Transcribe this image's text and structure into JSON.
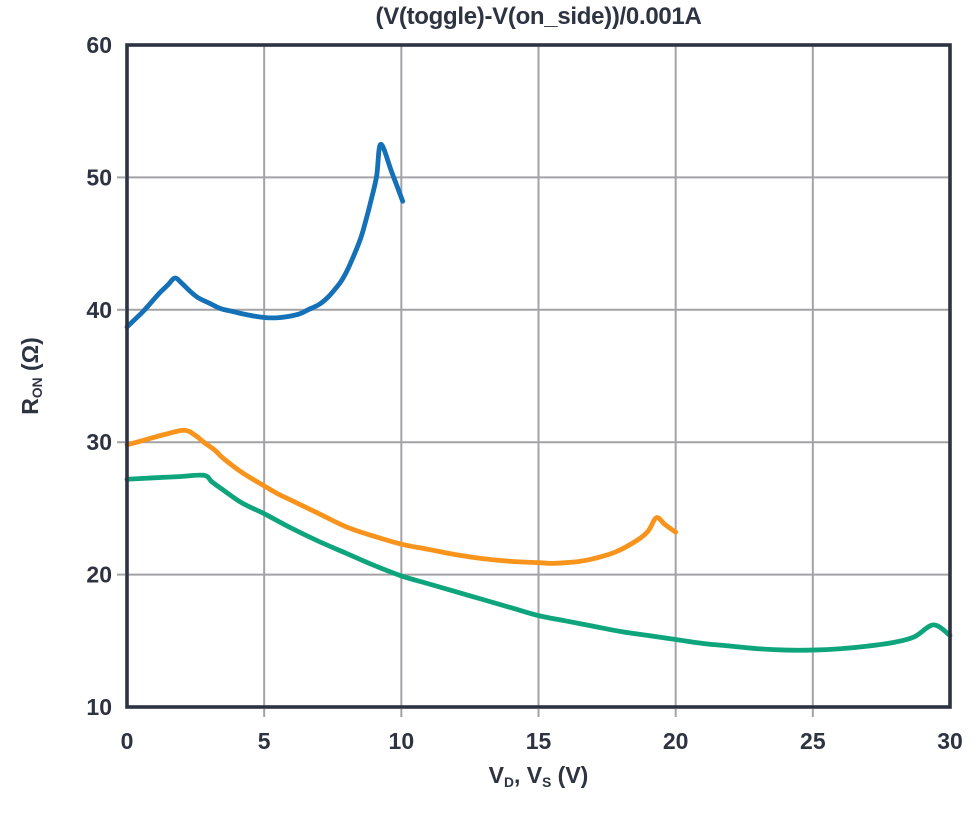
{
  "page": {
    "background": "#ffffff"
  },
  "chart_data": {
    "type": "line",
    "title": "(V(toggle)-V(on_side))/0.001A",
    "xlabel": "VD, VS (V)",
    "xlabel_parts": [
      {
        "t": "V"
      },
      {
        "t": "D",
        "sub": true
      },
      {
        "t": ", V"
      },
      {
        "t": "S",
        "sub": true
      },
      {
        "t": " (V)"
      }
    ],
    "ylabel": "RON (Ω)",
    "ylabel_parts": [
      {
        "t": "R"
      },
      {
        "t": "ON",
        "sub": true
      },
      {
        "t": " (Ω)"
      }
    ],
    "xlim": [
      0,
      30
    ],
    "ylim": [
      10,
      60
    ],
    "x_ticks": [
      0,
      5,
      10,
      15,
      20,
      25,
      30
    ],
    "y_ticks": [
      10,
      20,
      30,
      40,
      50,
      60
    ],
    "grid": true,
    "legend": "none",
    "colors": {
      "frame": "#2e3342",
      "text": "#2e3342",
      "grid": "#a3a3a7"
    },
    "series": [
      {
        "name": "blue-curve",
        "color": "#1471b8",
        "points": [
          [
            0,
            38.7
          ],
          [
            0.3,
            39.3
          ],
          [
            0.6,
            39.9
          ],
          [
            0.9,
            40.6
          ],
          [
            1.2,
            41.3
          ],
          [
            1.5,
            41.9
          ],
          [
            1.75,
            42.4
          ],
          [
            2,
            42
          ],
          [
            2.3,
            41.4
          ],
          [
            2.6,
            40.9
          ],
          [
            3,
            40.5
          ],
          [
            3.4,
            40.1
          ],
          [
            3.8,
            39.9
          ],
          [
            4.2,
            39.7
          ],
          [
            4.7,
            39.5
          ],
          [
            5.1,
            39.4
          ],
          [
            5.5,
            39.4
          ],
          [
            5.9,
            39.5
          ],
          [
            6.3,
            39.7
          ],
          [
            6.6,
            40
          ],
          [
            7,
            40.4
          ],
          [
            7.3,
            40.9
          ],
          [
            7.6,
            41.6
          ],
          [
            7.85,
            42.3
          ],
          [
            8.1,
            43.3
          ],
          [
            8.5,
            45.3
          ],
          [
            8.7,
            46.7
          ],
          [
            8.9,
            48.3
          ],
          [
            9.1,
            50.1
          ],
          [
            9.25,
            52.5
          ],
          [
            9.65,
            50.4
          ],
          [
            10.05,
            48.2
          ]
        ]
      },
      {
        "name": "orange-curve",
        "color": "#f8941c",
        "points": [
          [
            0,
            29.8
          ],
          [
            0.7,
            30.2
          ],
          [
            1.4,
            30.6
          ],
          [
            2.1,
            30.9
          ],
          [
            2.5,
            30.5
          ],
          [
            2.8,
            30
          ],
          [
            3.2,
            29.4
          ],
          [
            3.5,
            28.8
          ],
          [
            4.2,
            27.7
          ],
          [
            5,
            26.7
          ],
          [
            5.5,
            26.1
          ],
          [
            6,
            25.6
          ],
          [
            7,
            24.6
          ],
          [
            8,
            23.6
          ],
          [
            9,
            22.9
          ],
          [
            10,
            22.3
          ],
          [
            11,
            21.9
          ],
          [
            12,
            21.5
          ],
          [
            13,
            21.2
          ],
          [
            14,
            21
          ],
          [
            15,
            20.9
          ],
          [
            15.5,
            20.85
          ],
          [
            16,
            20.9
          ],
          [
            16.5,
            21
          ],
          [
            17,
            21.2
          ],
          [
            17.8,
            21.7
          ],
          [
            18.6,
            22.6
          ],
          [
            19,
            23.3
          ],
          [
            19.3,
            24.3
          ],
          [
            19.6,
            23.8
          ],
          [
            20,
            23.2
          ]
        ]
      },
      {
        "name": "green-curve",
        "color": "#0ea57d",
        "points": [
          [
            0,
            27.2
          ],
          [
            0.9,
            27.3
          ],
          [
            1.9,
            27.4
          ],
          [
            2.8,
            27.5
          ],
          [
            3.1,
            27
          ],
          [
            3.5,
            26.4
          ],
          [
            4.2,
            25.4
          ],
          [
            5,
            24.6
          ],
          [
            6,
            23.5
          ],
          [
            7,
            22.5
          ],
          [
            8,
            21.6
          ],
          [
            9,
            20.7
          ],
          [
            10,
            19.9
          ],
          [
            11,
            19.3
          ],
          [
            12,
            18.7
          ],
          [
            13,
            18.1
          ],
          [
            14,
            17.5
          ],
          [
            15,
            16.9
          ],
          [
            16,
            16.5
          ],
          [
            17,
            16.1
          ],
          [
            18,
            15.7
          ],
          [
            19,
            15.4
          ],
          [
            20,
            15.1
          ],
          [
            21,
            14.8
          ],
          [
            22,
            14.6
          ],
          [
            23,
            14.4
          ],
          [
            24,
            14.3
          ],
          [
            25,
            14.3
          ],
          [
            26,
            14.4
          ],
          [
            27,
            14.6
          ],
          [
            28,
            14.9
          ],
          [
            28.7,
            15.3
          ],
          [
            29.4,
            16.2
          ],
          [
            30,
            15.4
          ]
        ]
      }
    ]
  }
}
